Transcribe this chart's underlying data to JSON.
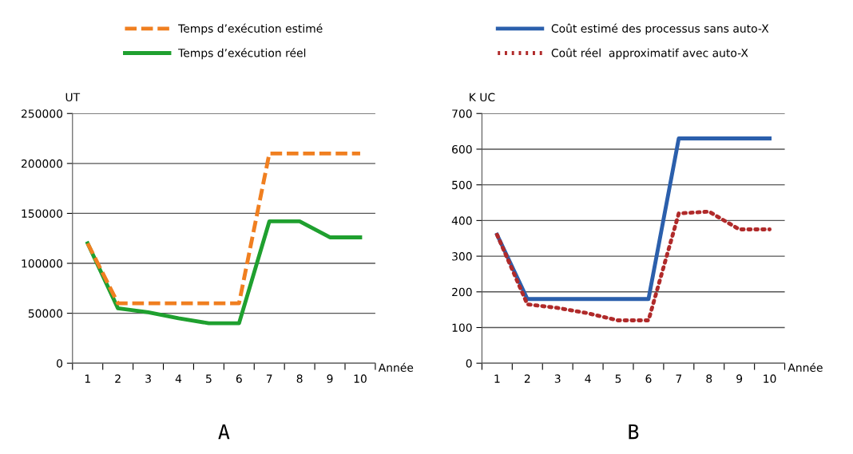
{
  "chart_data": [
    {
      "type": "line",
      "title": "A",
      "ylabel": "UT",
      "xlabel": "Année",
      "categories": [
        "1",
        "2",
        "3",
        "4",
        "5",
        "6",
        "7",
        "8",
        "9",
        "10"
      ],
      "ylim": [
        0,
        250000
      ],
      "yticks": [
        0,
        50000,
        100000,
        150000,
        200000,
        250000
      ],
      "grid": "y",
      "legend": "top",
      "marker": "none",
      "series": [
        {
          "name": "Temps d’exécution estimé",
          "color": "#f07f20",
          "line_style": "dashed",
          "values": [
            120000,
            60000,
            60000,
            60000,
            60000,
            60000,
            210000,
            210000,
            210000,
            210000
          ]
        },
        {
          "name": "Temps d’exécution réel",
          "color": "#1fa02f",
          "line_style": "solid",
          "values": [
            120000,
            55000,
            51000,
            45000,
            40000,
            40000,
            142000,
            142000,
            126000,
            126000
          ]
        }
      ]
    },
    {
      "type": "line",
      "title": "B",
      "ylabel": "K UC",
      "xlabel": "Année",
      "categories": [
        "1",
        "2",
        "3",
        "4",
        "5",
        "6",
        "7",
        "8",
        "9",
        "10"
      ],
      "ylim": [
        0,
        700
      ],
      "yticks": [
        0,
        100,
        200,
        300,
        400,
        500,
        600,
        700
      ],
      "grid": "y",
      "legend": "top",
      "marker": "none",
      "series": [
        {
          "name": "Coût estimé des processus sans auto-X",
          "color": "#2b5fac",
          "line_style": "solid",
          "values": [
            360,
            180,
            180,
            180,
            180,
            180,
            630,
            630,
            630,
            630
          ]
        },
        {
          "name": "Coût réel  approximatif avec auto-X",
          "color": "#b02a2a",
          "line_style": "dotted",
          "values": [
            360,
            165,
            155,
            140,
            120,
            120,
            420,
            425,
            375,
            375
          ]
        }
      ]
    }
  ]
}
